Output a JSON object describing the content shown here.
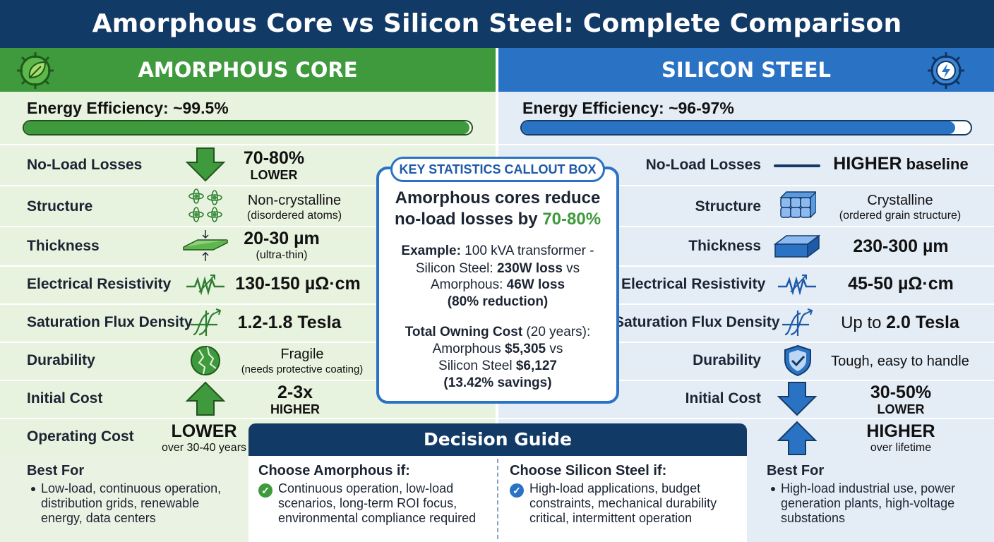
{
  "title": "Amorphous Core vs Silicon Steel: Complete Comparison",
  "colors": {
    "title_bg": "#123a66",
    "amorphous": "#3e9a3c",
    "silicon": "#2a73c4"
  },
  "amorphous": {
    "header": "AMORPHOUS CORE",
    "header_icon": "leaf-gear-icon",
    "efficiency_label": "Energy Efficiency: ~99.5%",
    "efficiency_fill_fraction": 0.995,
    "no_load": {
      "label": "No-Load Losses",
      "icon": "arrow-down-icon",
      "value": "70-80%",
      "sub": "LOWER"
    },
    "structure": {
      "label": "Structure",
      "icon": "atoms-icon",
      "value": "Non-crystalline",
      "sub": "(disordered atoms)"
    },
    "thickness": {
      "label": "Thickness",
      "icon": "thin-sheet-icon",
      "value": "20-30 µm",
      "sub": "(ultra-thin)"
    },
    "resistivity": {
      "label": "Electrical Resistivity",
      "icon": "resistor-icon",
      "value": "130-150 µΩ·cm"
    },
    "flux": {
      "label": "Saturation Flux Density",
      "icon": "hysteresis-icon",
      "value": "1.2-1.8 Tesla"
    },
    "durability": {
      "label": "Durability",
      "icon": "cracked-sphere-icon",
      "value": "Fragile",
      "sub": "(needs protective coating)"
    },
    "initial_cost": {
      "label": "Initial Cost",
      "icon": "arrow-up-icon",
      "value": "2-3x",
      "sub": "HIGHER"
    },
    "operating_cost": {
      "label": "Operating Cost",
      "value": "LOWER",
      "sub": "over 30-40 years"
    },
    "best_for": {
      "title": "Best For",
      "text": "Low-load, continuous operation, distribution grids, renewable energy, data centers"
    }
  },
  "silicon": {
    "header": "SILICON STEEL",
    "header_icon": "lightning-gear-icon",
    "efficiency_label": "Energy Efficiency: ~96-97%",
    "efficiency_fill_fraction": 0.965,
    "no_load": {
      "label": "No-Load Losses",
      "icon": "dash-icon",
      "value_bold": "HIGHER",
      "value_rest": " baseline"
    },
    "structure": {
      "label": "Structure",
      "icon": "crystal-grain-icon",
      "value": "Crystalline",
      "sub": "(ordered grain structure)"
    },
    "thickness": {
      "label": "Thickness",
      "icon": "thick-sheet-icon",
      "value": "230-300 µm"
    },
    "resistivity": {
      "label": "Electrical Resistivity",
      "icon": "resistor-icon",
      "value": "45-50 µΩ·cm"
    },
    "flux": {
      "label": "Saturation Flux Density",
      "icon": "hysteresis-icon",
      "value_pre": "Up to ",
      "value_bold": "2.0 Tesla"
    },
    "durability": {
      "label": "Durability",
      "icon": "shield-check-icon",
      "value": "Tough, easy to handle"
    },
    "initial_cost": {
      "label": "Initial Cost",
      "icon": "arrow-down-icon",
      "value": "30-50%",
      "sub": "LOWER"
    },
    "operating_cost": {
      "icon": "arrow-up-icon",
      "value": "HIGHER",
      "sub": "over lifetime"
    },
    "best_for": {
      "title": "Best For",
      "text": "High-load industrial use, power generation plants, high-voltage substations"
    }
  },
  "callout": {
    "tag": "KEY STATISTICS CALLOUT BOX",
    "headline_pre": "Amorphous cores reduce no-load losses by ",
    "headline_hl": "70-80%",
    "ex_label": "Example:",
    "ex_l1": " 100 kVA transformer -",
    "ex_l2a": "Silicon Steel: ",
    "ex_l2b": "230W loss",
    "ex_l2c": " vs",
    "ex_l3a": "Amorphous: ",
    "ex_l3b": "46W loss",
    "ex_l4": "(80% reduction)",
    "toc_l1a": "Total Owning Cost",
    "toc_l1b": " (20 years):",
    "toc_l2a": "Amorphous ",
    "toc_l2b": "$5,305",
    "toc_l2c": " vs",
    "toc_l3a": "Silicon Steel ",
    "toc_l3b": "$6,127",
    "toc_l4": "(13.42% savings)"
  },
  "decision": {
    "title": "Decision Guide",
    "amorphous_title": "Choose Amorphous if:",
    "amorphous_text": "Continuous operation, low-load scenarios, long-term ROI focus, environmental compliance required",
    "silicon_title": "Choose Silicon Steel if:",
    "silicon_text": "High-load applications, budget constraints, mechanical durability critical, intermittent operation"
  }
}
